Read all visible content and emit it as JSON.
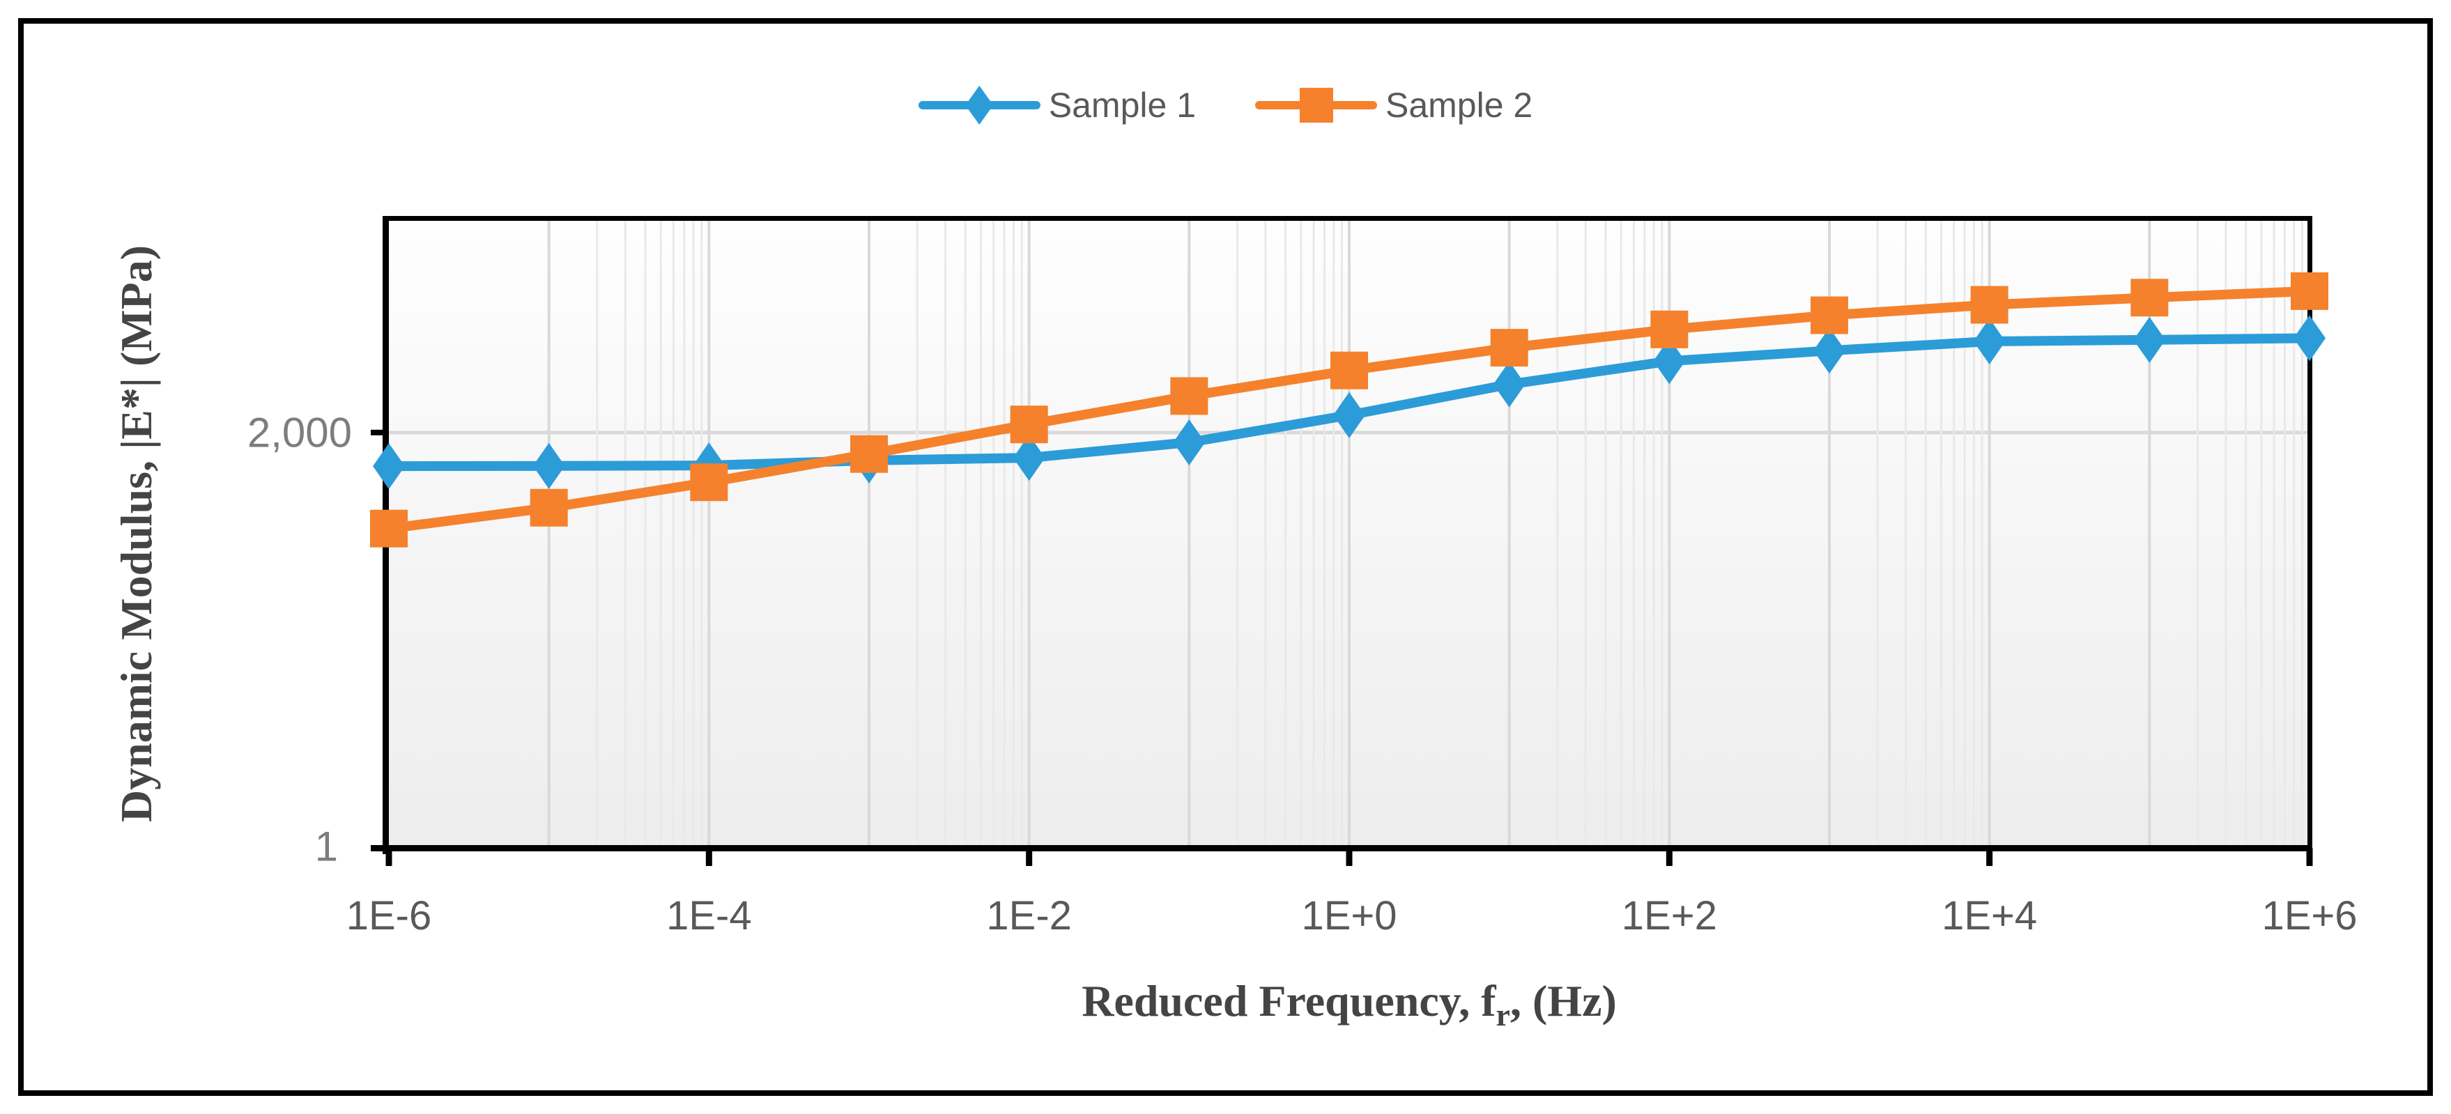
{
  "colors": {
    "sample1": "#2B9CD8",
    "sample2": "#F5812C",
    "grid_major": "#D9D9D9",
    "grid_minor": "#E9E9E9",
    "axis_line": "#000000",
    "x_tick_text": "#595959",
    "y_tick_text": "#7D7D7D",
    "legend_text": "#595959",
    "title_text": "#444444",
    "plot_fill_top": "#FEFEFE",
    "plot_fill_bottom": "#EDEDED"
  },
  "legend": {
    "items": [
      {
        "label": "Sample 1",
        "marker": "diamond",
        "color": "#2B9CD8"
      },
      {
        "label": "Sample 2",
        "marker": "square",
        "color": "#F5812C"
      }
    ]
  },
  "y_axis": {
    "title": "Dynamic Modulus, |E*|  (MPa)",
    "scale": "log",
    "min": 1,
    "max": 100000,
    "ticks": [
      {
        "label": "2,000",
        "value": 2000
      },
      {
        "label": "1",
        "value": 1
      }
    ],
    "gridline_value": 2000
  },
  "x_axis": {
    "title_prefix": "Reduced Frequency, f",
    "title_sub": "r",
    "title_suffix": ", (Hz)",
    "scale": "log",
    "min": 1e-06,
    "max": 1000000.0,
    "tick_exponents": [
      -6,
      -4,
      -2,
      0,
      2,
      4,
      6
    ],
    "tick_labels": [
      "1E-6",
      "1E-4",
      "1E-2",
      "1E+0",
      "1E+2",
      "1E+4",
      "1E+6"
    ]
  },
  "chart_data": {
    "type": "line",
    "title": "",
    "xlabel": "Reduced Frequency, fr, (Hz)",
    "ylabel": "Dynamic Modulus, |E*| (MPa)",
    "x_scale": "log",
    "y_scale": "log",
    "xlim": [
      1e-06,
      1000000.0
    ],
    "ylim": [
      1,
      100000
    ],
    "grid": "x-major, x-minor-log, y-gridline-at-2000",
    "legend_position": "top-center",
    "x": [
      1e-06,
      1e-05,
      0.0001,
      0.001,
      0.01,
      0.1,
      1,
      10,
      100,
      1000,
      10000,
      100000,
      1000000
    ],
    "series": [
      {
        "name": "Sample 1",
        "color": "#2B9CD8",
        "marker": "diamond",
        "values": [
          1080,
          1085,
          1095,
          1200,
          1260,
          1670,
          2750,
          4830,
          7390,
          8950,
          10600,
          10900,
          11250
        ]
      },
      {
        "name": "Sample 2",
        "color": "#F5812C",
        "marker": "square",
        "values": [
          345,
          505,
          805,
          1350,
          2320,
          3900,
          6230,
          9440,
          13200,
          17100,
          20700,
          23600,
          26600
        ]
      }
    ]
  },
  "geometry_note": "y gridline and labels at 1 and 2,000 only; x major gridlines every decade with log-minor clusters before each labeled decade"
}
